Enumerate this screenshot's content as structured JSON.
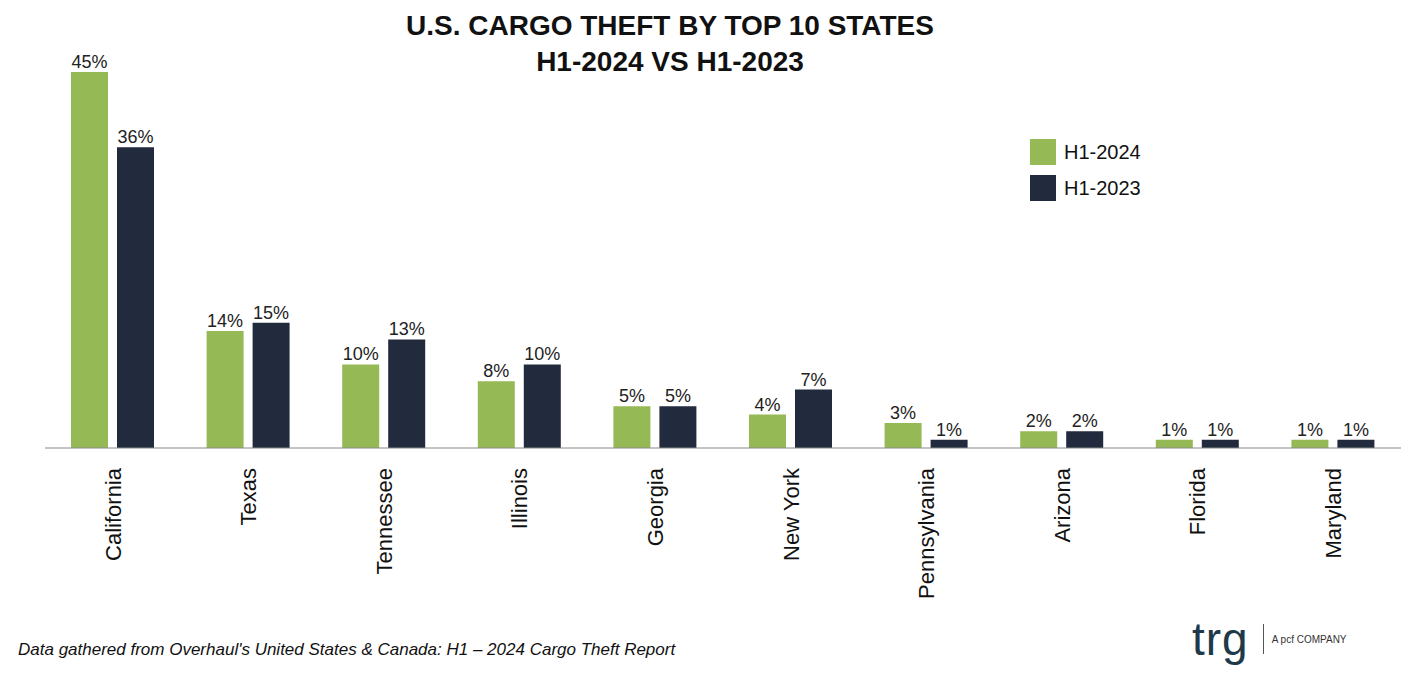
{
  "chart_data": {
    "type": "bar",
    "title": "U.S. CARGO THEFT BY TOP 10 STATES",
    "subtitle": "H1-2024 VS H1-2023",
    "categories": [
      "California",
      "Texas",
      "Tennessee",
      "Illinois",
      "Georgia",
      "New York",
      "Pennsylvania",
      "Arizona",
      "Florida",
      "Maryland"
    ],
    "series": [
      {
        "name": "H1-2024",
        "color": "#95b954",
        "values": [
          45,
          14,
          10,
          8,
          5,
          4,
          3,
          2,
          1,
          1
        ],
        "value_labels": [
          "45%",
          "14%",
          "10%",
          "8%",
          "5%",
          "4%",
          "3%",
          "2%",
          "1%",
          "1%"
        ]
      },
      {
        "name": "H1-2023",
        "color": "#222a3d",
        "values": [
          36,
          15,
          13,
          10,
          5,
          7,
          1,
          2,
          1,
          1
        ],
        "value_labels": [
          "36%",
          "15%",
          "13%",
          "10%",
          "5%",
          "7%",
          "1%",
          "2%",
          "1%",
          "1%"
        ]
      }
    ],
    "ylim": [
      0,
      45
    ],
    "grid": false,
    "legend": "upper right",
    "data_labels": true,
    "tick_labels": "x",
    "footnote": "Data gathered from Overhaul's United States & Canada: H1 – 2024 Cargo Theft Report",
    "logo": "trg",
    "logo_tagline": "A pcf COMPANY"
  }
}
